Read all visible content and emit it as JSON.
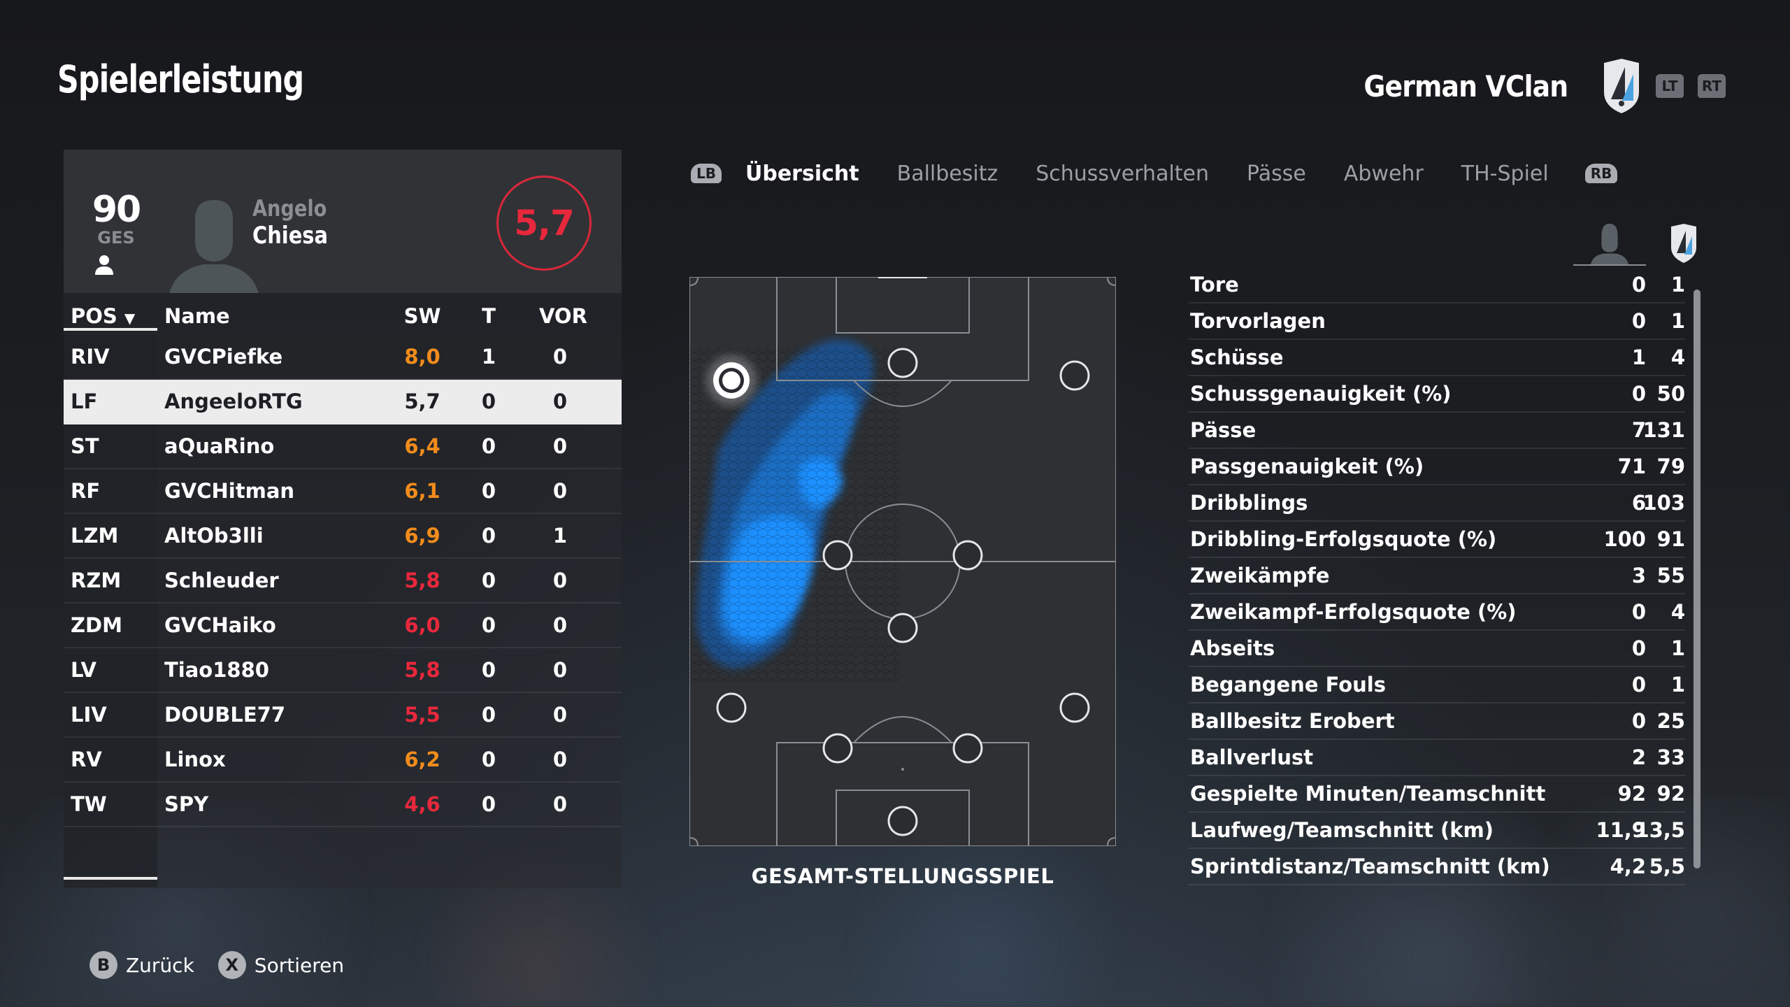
{
  "header": {
    "title": "Spielerleistung",
    "team_name": "German VClan",
    "lt_label": "LT",
    "rt_label": "RT"
  },
  "player_card": {
    "overall": "90",
    "overall_label": "GES",
    "first_name": "Angelo",
    "last_name": "Chiesa",
    "match_rating": "5,7"
  },
  "table": {
    "headers": {
      "pos": "POS",
      "name": "Name",
      "sw": "SW",
      "t": "T",
      "vor": "VOR"
    },
    "rows": [
      {
        "pos": "RIV",
        "name": "GVCPiefke",
        "sw": "8,0",
        "t": "1",
        "vor": "0",
        "sw_color": "orange"
      },
      {
        "pos": "LF",
        "name": "AngeeloRTG",
        "sw": "5,7",
        "t": "0",
        "vor": "0",
        "sw_color": "dark",
        "selected": true
      },
      {
        "pos": "ST",
        "name": "aQuaRino",
        "sw": "6,4",
        "t": "0",
        "vor": "0",
        "sw_color": "orange"
      },
      {
        "pos": "RF",
        "name": "GVCHitman",
        "sw": "6,1",
        "t": "0",
        "vor": "0",
        "sw_color": "orange"
      },
      {
        "pos": "LZM",
        "name": "AltOb3lli",
        "sw": "6,9",
        "t": "0",
        "vor": "1",
        "sw_color": "orange"
      },
      {
        "pos": "RZM",
        "name": "Schleuder",
        "sw": "5,8",
        "t": "0",
        "vor": "0",
        "sw_color": "red"
      },
      {
        "pos": "ZDM",
        "name": "GVCHaiko",
        "sw": "6,0",
        "t": "0",
        "vor": "0",
        "sw_color": "red"
      },
      {
        "pos": "LV",
        "name": "Tiao1880",
        "sw": "5,8",
        "t": "0",
        "vor": "0",
        "sw_color": "red"
      },
      {
        "pos": "LIV",
        "name": "DOUBLE77",
        "sw": "5,5",
        "t": "0",
        "vor": "0",
        "sw_color": "red"
      },
      {
        "pos": "RV",
        "name": "Linox",
        "sw": "6,2",
        "t": "0",
        "vor": "0",
        "sw_color": "orange"
      },
      {
        "pos": "TW",
        "name": "SPY",
        "sw": "4,6",
        "t": "0",
        "vor": "0",
        "sw_color": "red"
      }
    ]
  },
  "tabs": {
    "lb_label": "LB",
    "rb_label": "RB",
    "items": [
      "Übersicht",
      "Ballbesitz",
      "Schussverhalten",
      "Pässe",
      "Abwehr",
      "TH-Spiel"
    ],
    "active_index": 0
  },
  "pitch": {
    "label": "GESAMT-STELLUNGSSPIEL"
  },
  "stats": [
    {
      "label": "Tore",
      "player": "0",
      "team": "1"
    },
    {
      "label": "Torvorlagen",
      "player": "0",
      "team": "1"
    },
    {
      "label": "Schüsse",
      "player": "1",
      "team": "4"
    },
    {
      "label": "Schussgenauigkeit (%)",
      "player": "0",
      "team": "50"
    },
    {
      "label": "Pässe",
      "player": "7",
      "team": "131"
    },
    {
      "label": "Passgenauigkeit (%)",
      "player": "71",
      "team": "79"
    },
    {
      "label": "Dribblings",
      "player": "6",
      "team": "103"
    },
    {
      "label": "Dribbling-Erfolgsquote (%)",
      "player": "100",
      "team": "91"
    },
    {
      "label": "Zweikämpfe",
      "player": "3",
      "team": "55"
    },
    {
      "label": "Zweikampf-Erfolgsquote (%)",
      "player": "0",
      "team": "4"
    },
    {
      "label": "Abseits",
      "player": "0",
      "team": "1"
    },
    {
      "label": "Begangene Fouls",
      "player": "0",
      "team": "1"
    },
    {
      "label": "Ballbesitz Erobert",
      "player": "0",
      "team": "25"
    },
    {
      "label": "Ballverlust",
      "player": "2",
      "team": "33"
    },
    {
      "label": "Gespielte Minuten/Teamschnitt",
      "player": "92",
      "team": "92"
    },
    {
      "label": "Laufweg/Teamschnitt (km)",
      "player": "11,9",
      "team": "13,5"
    },
    {
      "label": "Sprintdistanz/Teamschnitt (km)",
      "player": "4,2",
      "team": "5,5"
    }
  ],
  "footer": {
    "back_key": "B",
    "back_label": "Zurück",
    "sort_key": "X",
    "sort_label": "Sortieren"
  },
  "colors": {
    "rating_red": "#e8283c",
    "rating_orange": "#f28c1c",
    "heatmap_blue": "#1e90ff"
  }
}
